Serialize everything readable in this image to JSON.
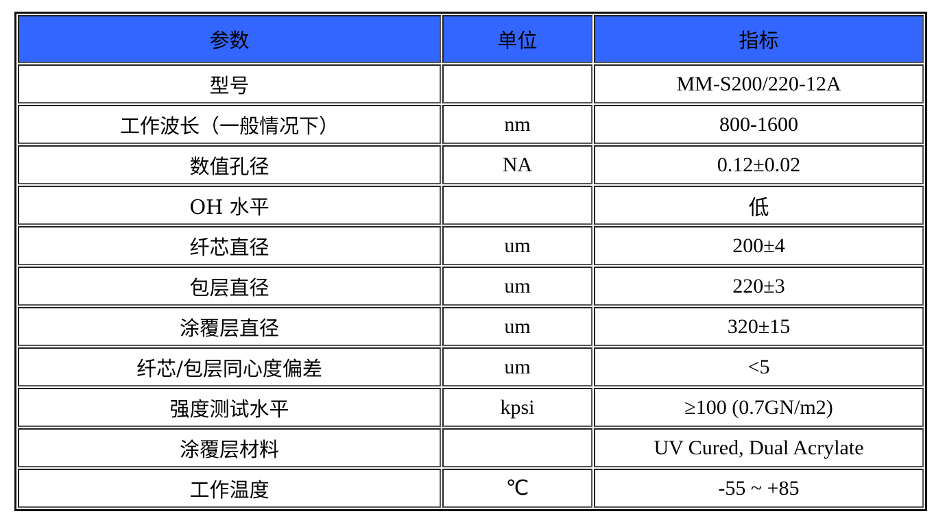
{
  "header_color": "#3366ff",
  "table": {
    "headers": [
      "参数",
      "单位",
      "指标"
    ],
    "rows": [
      [
        "型号",
        "",
        "MM-S200/220-12A"
      ],
      [
        "工作波长（一般情况下）",
        "nm",
        "800-1600"
      ],
      [
        "数值孔径",
        "NA",
        "0.12±0.02"
      ],
      [
        "OH 水平",
        "",
        "低"
      ],
      [
        "纤芯直径",
        "um",
        "200±4"
      ],
      [
        "包层直径",
        "um",
        "220±3"
      ],
      [
        "涂覆层直径",
        "um",
        "320±15"
      ],
      [
        "纤芯/包层同心度偏差",
        "um",
        "<5"
      ],
      [
        "强度测试水平",
        "kpsi",
        "≥100 (0.7GN/m2)"
      ],
      [
        "涂覆层材料",
        "",
        "UV Cured, Dual Acrylate"
      ],
      [
        "工作温度",
        "℃",
        "-55 ~ +85"
      ]
    ]
  }
}
